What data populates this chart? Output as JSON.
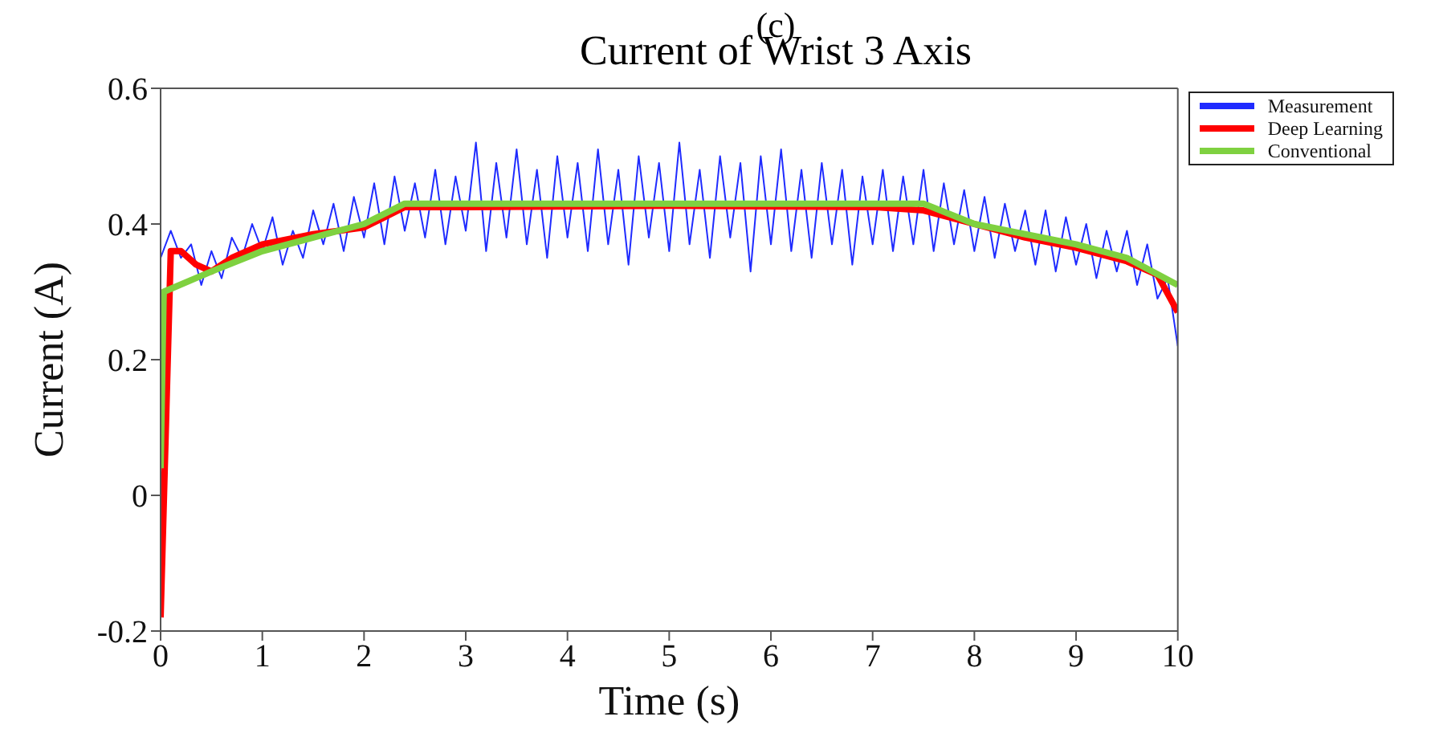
{
  "chart_data": {
    "type": "line",
    "title": "Current of Wrist 3 Axis",
    "annotations": [
      "(c)"
    ],
    "xlabel": "Time (s)",
    "ylabel": "Current (A)",
    "xlim": [
      0,
      10
    ],
    "xticks": [
      0,
      1,
      2,
      3,
      4,
      5,
      6,
      7,
      8,
      9,
      10
    ],
    "ylim": [
      -0.2,
      0.6
    ],
    "yticks": [
      -0.2,
      0,
      0.2,
      0.4,
      0.6
    ],
    "grid": false,
    "legend": "top right",
    "marker": "none",
    "line_style": "solid",
    "series": [
      {
        "name": "Measurement",
        "color": "#1f2bff",
        "x": [
          0,
          0.1,
          0.2,
          0.3,
          0.4,
          0.5,
          0.6,
          0.7,
          0.8,
          0.9,
          1,
          1.1,
          1.2,
          1.3,
          1.4,
          1.5,
          1.6,
          1.7,
          1.8,
          1.9,
          2,
          2.1,
          2.2,
          2.3,
          2.4,
          2.5,
          2.6,
          2.7,
          2.8,
          2.9,
          3,
          3.1,
          3.2,
          3.3,
          3.4,
          3.5,
          3.6,
          3.7,
          3.8,
          3.9,
          4,
          4.1,
          4.2,
          4.3,
          4.4,
          4.5,
          4.6,
          4.7,
          4.8,
          4.9,
          5,
          5.1,
          5.2,
          5.3,
          5.4,
          5.5,
          5.6,
          5.7,
          5.8,
          5.9,
          6,
          6.1,
          6.2,
          6.3,
          6.4,
          6.5,
          6.6,
          6.7,
          6.8,
          6.9,
          7,
          7.1,
          7.2,
          7.3,
          7.4,
          7.5,
          7.6,
          7.7,
          7.8,
          7.9,
          8,
          8.1,
          8.2,
          8.3,
          8.4,
          8.5,
          8.6,
          8.7,
          8.8,
          8.9,
          9,
          9.1,
          9.2,
          9.3,
          9.4,
          9.5,
          9.6,
          9.7,
          9.8,
          9.9,
          10
        ],
        "values": [
          0.35,
          0.39,
          0.35,
          0.37,
          0.31,
          0.36,
          0.32,
          0.38,
          0.35,
          0.4,
          0.36,
          0.41,
          0.34,
          0.39,
          0.35,
          0.42,
          0.37,
          0.43,
          0.36,
          0.44,
          0.38,
          0.46,
          0.37,
          0.47,
          0.39,
          0.46,
          0.38,
          0.48,
          0.37,
          0.47,
          0.39,
          0.52,
          0.36,
          0.49,
          0.38,
          0.51,
          0.37,
          0.48,
          0.35,
          0.5,
          0.38,
          0.49,
          0.36,
          0.51,
          0.37,
          0.48,
          0.34,
          0.5,
          0.38,
          0.49,
          0.36,
          0.52,
          0.37,
          0.48,
          0.35,
          0.5,
          0.38,
          0.49,
          0.33,
          0.5,
          0.37,
          0.51,
          0.36,
          0.48,
          0.35,
          0.49,
          0.37,
          0.48,
          0.34,
          0.47,
          0.37,
          0.48,
          0.36,
          0.47,
          0.37,
          0.48,
          0.36,
          0.46,
          0.37,
          0.45,
          0.36,
          0.44,
          0.35,
          0.43,
          0.36,
          0.42,
          0.34,
          0.42,
          0.33,
          0.41,
          0.34,
          0.4,
          0.32,
          0.39,
          0.33,
          0.39,
          0.31,
          0.37,
          0.29,
          0.32,
          0.22
        ]
      },
      {
        "name": "Deep Learning",
        "color": "#ff0000",
        "x": [
          0,
          0.1,
          0.2,
          0.35,
          0.5,
          0.7,
          1,
          1.5,
          2,
          2.2,
          2.4,
          3,
          5,
          7,
          7.5,
          8,
          8.5,
          9,
          9.5,
          9.8,
          10
        ],
        "values": [
          -0.18,
          0.36,
          0.36,
          0.34,
          0.33,
          0.35,
          0.37,
          0.385,
          0.395,
          0.41,
          0.425,
          0.425,
          0.427,
          0.425,
          0.42,
          0.4,
          0.38,
          0.365,
          0.345,
          0.325,
          0.27
        ]
      },
      {
        "name": "Conventional",
        "color": "#7fd140",
        "x": [
          0,
          0.03,
          0.5,
          1,
          1.5,
          2,
          2.4,
          3,
          5,
          7,
          7.5,
          8,
          9,
          9.5,
          10
        ],
        "values": [
          0.04,
          0.3,
          0.33,
          0.36,
          0.38,
          0.4,
          0.43,
          0.43,
          0.43,
          0.43,
          0.43,
          0.4,
          0.37,
          0.35,
          0.31
        ]
      }
    ]
  }
}
